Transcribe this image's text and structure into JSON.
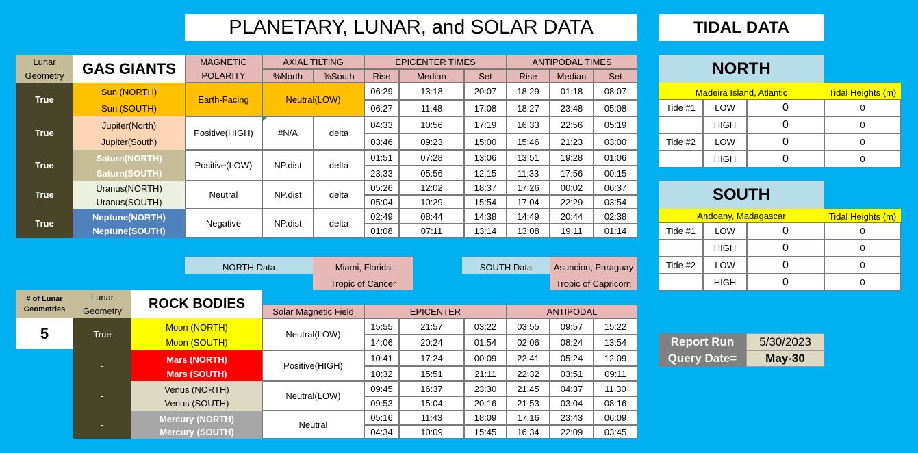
{
  "title": "PLANETARY, LUNAR, and SOLAR DATA",
  "tidal_title": "TIDAL DATA",
  "gas": {
    "lunar_geometry_header": "Lunar Geometry",
    "section_title": "GAS GIANTS",
    "magnetic_header": "MAGNETIC POLARITY",
    "axial_header": "AXIAL TILTING",
    "pct_north": "%North",
    "pct_south": "%South",
    "epicenter_header": "EPICENTER TIMES",
    "antipodal_header": "ANTIPODAL TIMES",
    "rise": "Rise",
    "median": "Median",
    "set": "Set",
    "rows": [
      {
        "geom": "True",
        "north": "Sun (NORTH)",
        "south": "Sun (SOUTH)",
        "mag": "Earth-Facing",
        "axial_merged": "Neutral(LOW)",
        "times": [
          [
            "06:29",
            "13:18",
            "20:07",
            "18:29",
            "01:18",
            "08:07"
          ],
          [
            "06:27",
            "11:48",
            "17:08",
            "18:27",
            "23:48",
            "05:08"
          ]
        ]
      },
      {
        "geom": "True",
        "north": "Jupiter(North)",
        "south": "Jupiter(South)",
        "mag": "Positive(HIGH)",
        "pn": "#N/A",
        "ps": "delta",
        "times": [
          [
            "04:33",
            "10:56",
            "17:19",
            "16:33",
            "22:56",
            "05:19"
          ],
          [
            "03:46",
            "09:23",
            "15:00",
            "15:46",
            "21:23",
            "03:00"
          ]
        ]
      },
      {
        "geom": "True",
        "north": "Saturn(NORTH)",
        "south": "Saturn(SOUTH)",
        "mag": "Positive(LOW)",
        "pn": "NP.dist",
        "ps": "delta",
        "times": [
          [
            "01:51",
            "07:28",
            "13:06",
            "13:51",
            "19:28",
            "01:06"
          ],
          [
            "23:33",
            "05:56",
            "12:15",
            "11:33",
            "17:56",
            "00:15"
          ]
        ]
      },
      {
        "geom": "True",
        "north": "Uranus(NORTH)",
        "south": "Uranus(SOUTH)",
        "mag": "Neutral",
        "pn": "NP.dist",
        "ps": "delta",
        "times": [
          [
            "05:26",
            "12:02",
            "18:37",
            "17:26",
            "00:02",
            "06:37"
          ],
          [
            "05:04",
            "10:29",
            "15:54",
            "17:04",
            "22:29",
            "03:54"
          ]
        ]
      },
      {
        "geom": "True",
        "north": "Neptune(NORTH)",
        "south": "Neptune(SOUTH)",
        "mag": "Negative",
        "pn": "NP.dist",
        "ps": "delta",
        "times": [
          [
            "02:49",
            "08:44",
            "14:38",
            "14:49",
            "20:44",
            "02:38"
          ],
          [
            "01:08",
            "07:11",
            "13:14",
            "13:08",
            "19:11",
            "01:14"
          ]
        ]
      }
    ]
  },
  "locations": {
    "north_label": "NORTH Data",
    "north_city": "Miami, Florida",
    "north_tropic": "Tropic of Cancer",
    "south_label": "SOUTH Data",
    "south_city": "Asuncion, Paraguay",
    "south_tropic": "Tropic of Capricorn"
  },
  "rock": {
    "count_header": "# of Lunar Geometries",
    "count_value": "5",
    "lunar_geometry_header": "Lunar Geometry",
    "section_title": "ROCK BODIES",
    "solar_header": "Solar Magnetic Field",
    "epicenter_header": "EPICENTER",
    "antipodal_header": "ANTIPODAL",
    "rows": [
      {
        "geom": "True",
        "north": "Moon (NORTH)",
        "south": "Moon (SOUTH)",
        "field": "Neutral(LOW)",
        "times": [
          [
            "15:55",
            "21:57",
            "03:22",
            "03:55",
            "09:57",
            "15:22"
          ],
          [
            "14:06",
            "20:24",
            "01:54",
            "02:06",
            "08:24",
            "13:54"
          ]
        ]
      },
      {
        "geom": "-",
        "north": "Mars (NORTH)",
        "south": "Mars (SOUTH)",
        "field": "Positive(HIGH)",
        "times": [
          [
            "10:41",
            "17:24",
            "00:09",
            "22:41",
            "05:24",
            "12:09"
          ],
          [
            "10:32",
            "15:51",
            "21:11",
            "22:32",
            "03:51",
            "09:11"
          ]
        ]
      },
      {
        "geom": "-",
        "north": "Venus (NORTH)",
        "south": "Venus (SOUTH)",
        "field": "Neutral(LOW)",
        "times": [
          [
            "09:45",
            "16:37",
            "23:30",
            "21:45",
            "04:37",
            "11:30"
          ],
          [
            "09:53",
            "15:04",
            "20:16",
            "21:53",
            "03:04",
            "08:16"
          ]
        ]
      },
      {
        "geom": "-",
        "north": "Mercury (NORTH)",
        "south": "Mercury (SOUTH)",
        "field": "Neutral",
        "times": [
          [
            "05:16",
            "11:43",
            "18:09",
            "17:16",
            "23:43",
            "06:09"
          ],
          [
            "04:34",
            "10:09",
            "15:45",
            "16:34",
            "22:09",
            "03:45"
          ]
        ]
      }
    ]
  },
  "tidal": {
    "north": {
      "title": "NORTH",
      "location": "Madeira Island, Atlantic",
      "heights_header": "Tidal Heights (m)",
      "rows": [
        {
          "tide": "Tide #1",
          "level": "LOW",
          "v1": "0",
          "v2": "0"
        },
        {
          "tide": "",
          "level": "HIGH",
          "v1": "0",
          "v2": "0"
        },
        {
          "tide": "Tide #2",
          "level": "LOW",
          "v1": "0",
          "v2": "0"
        },
        {
          "tide": "",
          "level": "HIGH",
          "v1": "0",
          "v2": "0"
        }
      ]
    },
    "south": {
      "title": "SOUTH",
      "location": "Andoany, Madagascar",
      "heights_header": "Tidal Heights (m)",
      "rows": [
        {
          "tide": "Tide #1",
          "level": "LOW",
          "v1": "0",
          "v2": "0"
        },
        {
          "tide": "",
          "level": "HIGH",
          "v1": "0",
          "v2": "0"
        },
        {
          "tide": "Tide #2",
          "level": "LOW",
          "v1": "0",
          "v2": "0"
        },
        {
          "tide": "",
          "level": "HIGH",
          "v1": "0",
          "v2": "0"
        }
      ]
    }
  },
  "report": {
    "run_label": "Report Run",
    "run_value": "5/30/2023",
    "query_label": "Query Date=",
    "query_value": "May-30"
  },
  "colors": {
    "background": "#00B0F0",
    "sun": "#FFC000",
    "jupiter": "#FCD5B4",
    "saturn": "#C4BD97",
    "uranus": "#EBF1DE",
    "neptune": "#4F81BD",
    "moon": "#FFFF00",
    "mars": "#FF0000",
    "venus": "#DDD9C4",
    "mercury": "#A6A6A6",
    "header_pink": "#E6B9B8",
    "lunar_olive": "#494529"
  }
}
